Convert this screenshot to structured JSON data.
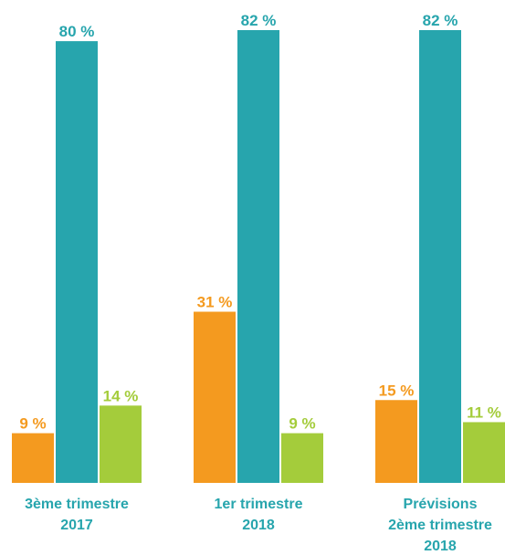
{
  "chart_data": {
    "type": "bar",
    "categories": [
      [
        "3ème trimestre",
        "2017"
      ],
      [
        "1er trimestre",
        "2018"
      ],
      [
        "Prévisions",
        "2ème trimestre",
        "2018"
      ]
    ],
    "series": [
      {
        "color": "#f49a1f",
        "values": [
          9,
          31,
          15
        ],
        "value_labels": [
          "9 %",
          "31 %",
          "15 %"
        ]
      },
      {
        "color": "#27a5ad",
        "values": [
          80,
          82,
          82
        ],
        "value_labels": [
          "80 %",
          "82 %",
          "82 %"
        ]
      },
      {
        "color": "#a4cc3b",
        "values": [
          14,
          9,
          11
        ],
        "value_labels": [
          "14 %",
          "9 %",
          "11 %"
        ]
      }
    ]
  }
}
